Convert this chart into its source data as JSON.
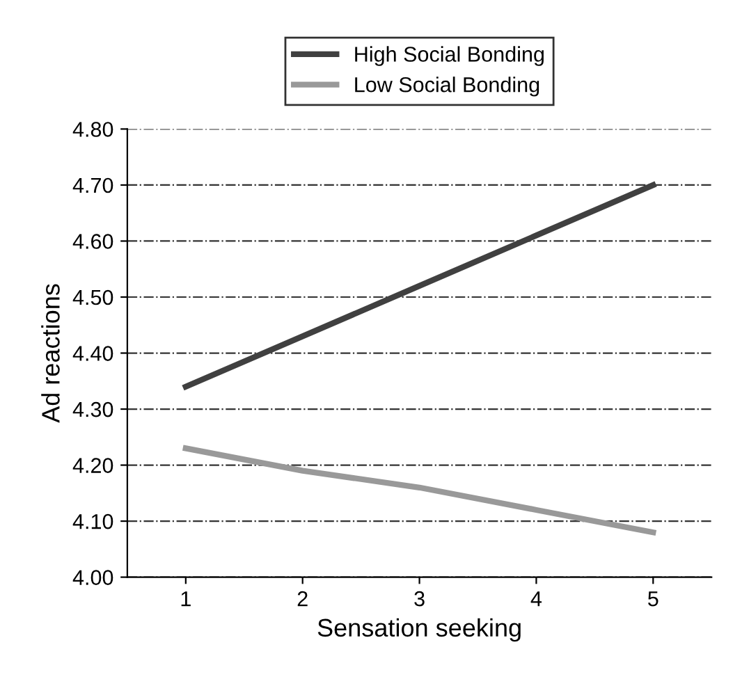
{
  "chart_data": {
    "type": "line",
    "xlabel": "Sensation seeking",
    "ylabel": "Ad reactions",
    "categories": [
      "1",
      "2",
      "3",
      "4",
      "5"
    ],
    "series": [
      {
        "name": "High Social Bonding",
        "color": "#404040",
        "values": [
          4.34,
          4.43,
          4.52,
          4.61,
          4.7
        ]
      },
      {
        "name": "Low Social Bonding",
        "color": "#999999",
        "values": [
          4.23,
          4.19,
          4.16,
          4.12,
          4.08
        ]
      }
    ],
    "ylim": [
      4.0,
      4.8
    ],
    "yticks": [
      {
        "value": 4.0,
        "label": "4.00"
      },
      {
        "value": 4.1,
        "label": "4.10"
      },
      {
        "value": 4.2,
        "label": "4.20"
      },
      {
        "value": 4.3,
        "label": "4.30"
      },
      {
        "value": 4.4,
        "label": "4.40"
      },
      {
        "value": 4.5,
        "label": "4.50"
      },
      {
        "value": 4.6,
        "label": "4.60"
      },
      {
        "value": 4.7,
        "label": "4.70"
      },
      {
        "value": 4.8,
        "label": "4.80"
      }
    ],
    "grid": "y",
    "legend": "top",
    "marker": "none",
    "line_style": "solid"
  }
}
